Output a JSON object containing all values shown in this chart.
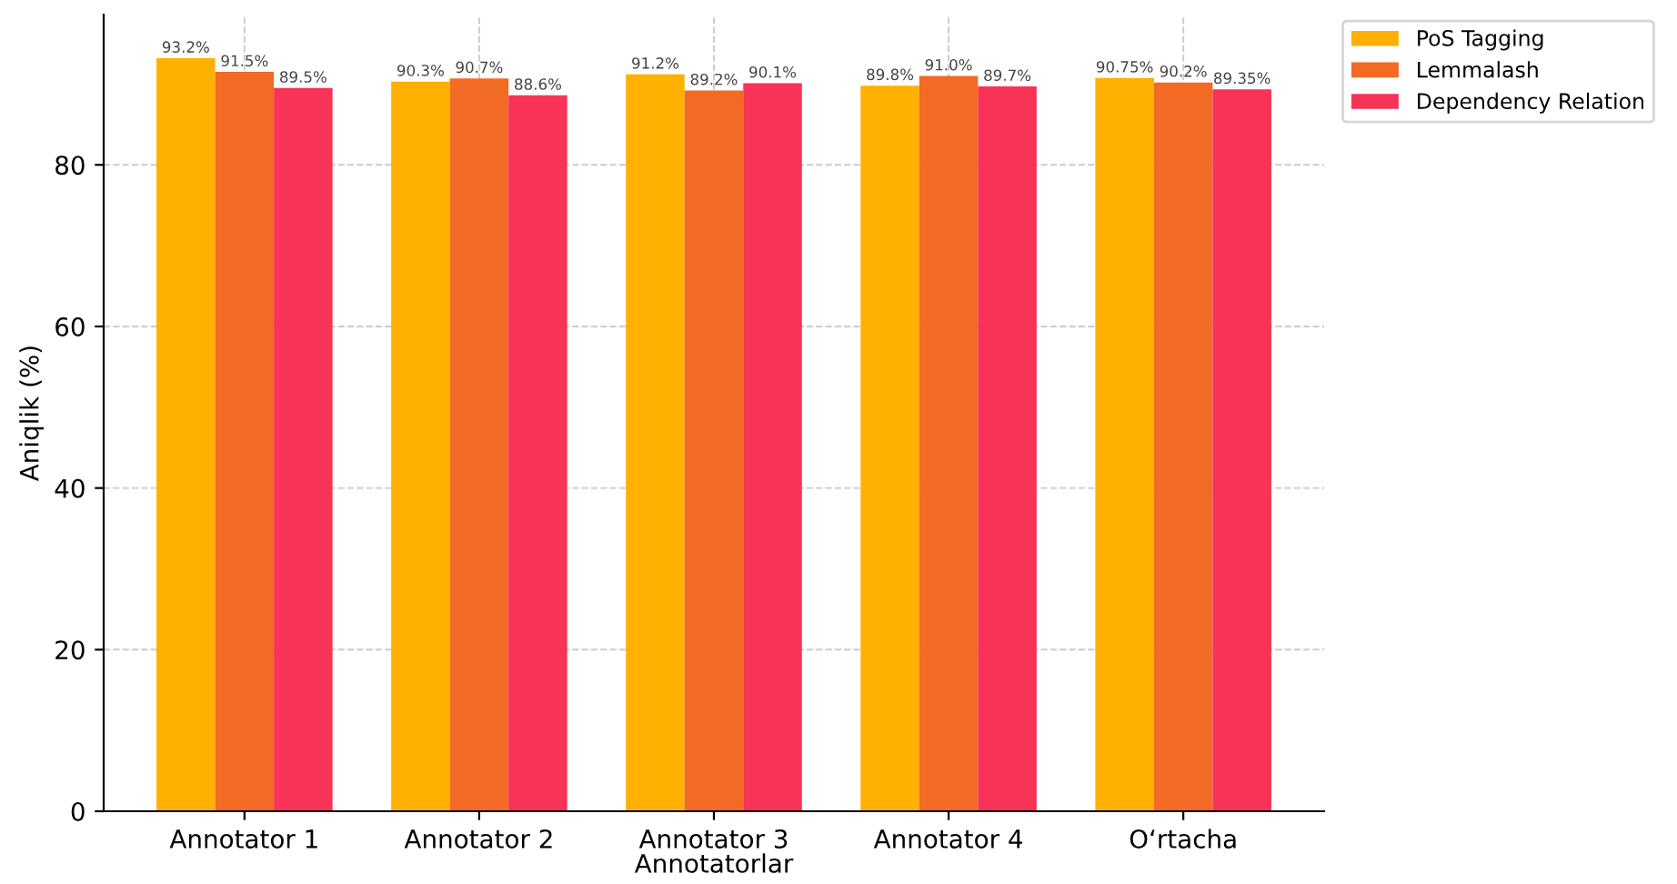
{
  "chart_data": {
    "type": "bar",
    "xlabel": "Annotatorlar",
    "ylabel": "Aniqlik (%)",
    "categories": [
      "Annotator 1",
      "Annotator 2",
      "Annotator 3",
      "Annotator 4",
      "O‘rtacha"
    ],
    "series": [
      {
        "name": "PoS Tagging",
        "color": "#ffb000",
        "values": [
          93.2,
          90.3,
          91.2,
          89.8,
          90.75
        ],
        "value_labels": [
          "93.2%",
          "90.3%",
          "91.2%",
          "89.8%",
          "90.75%"
        ]
      },
      {
        "name": "Lemmalash",
        "color": "#f26a24",
        "values": [
          91.5,
          90.7,
          89.2,
          91.0,
          90.2
        ],
        "value_labels": [
          "91.5%",
          "90.7%",
          "89.2%",
          "91.0%",
          "90.2%"
        ]
      },
      {
        "name": "Dependency Relation",
        "color": "#f73357",
        "values": [
          89.5,
          88.6,
          90.1,
          89.7,
          89.35
        ],
        "value_labels": [
          "89.5%",
          "88.6%",
          "90.1%",
          "89.7%",
          "89.35%"
        ]
      }
    ],
    "ylim": [
      0,
      98.6
    ],
    "yticks": [
      0,
      20,
      40,
      60,
      80
    ],
    "grid": true,
    "legend": "top right"
  }
}
